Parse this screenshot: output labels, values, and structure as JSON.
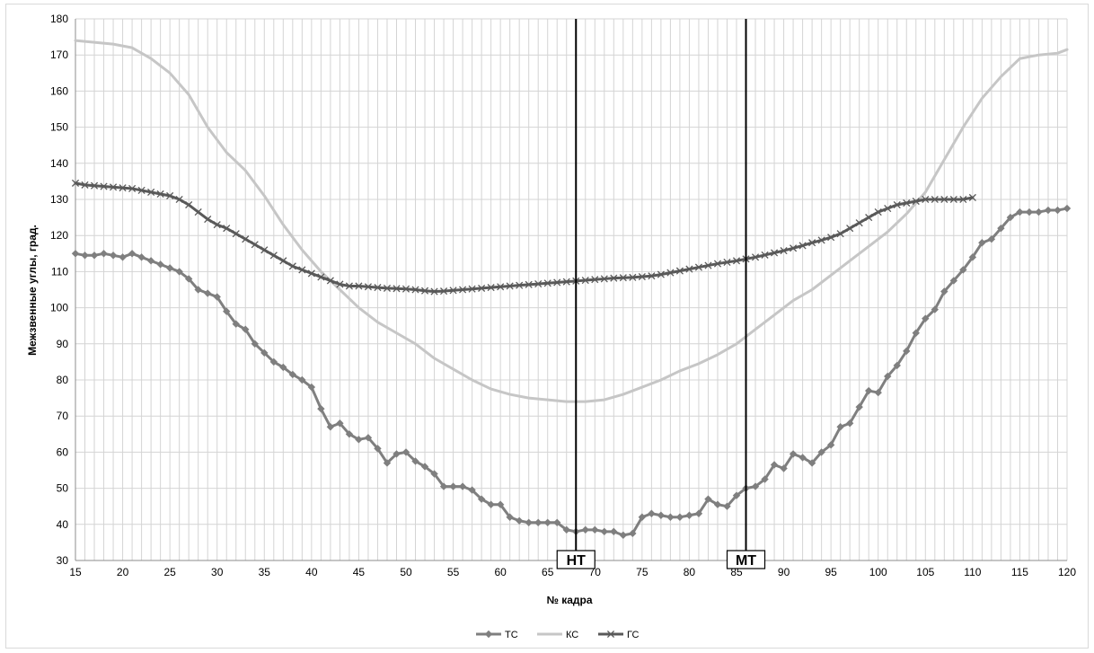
{
  "chart_data": {
    "type": "line",
    "title": "",
    "xlabel": "№ кадра",
    "ylabel": "Межзвенные углы, град.",
    "xlim": [
      15,
      120
    ],
    "ylim": [
      30,
      180
    ],
    "x_ticks": [
      15,
      20,
      25,
      30,
      35,
      40,
      45,
      50,
      55,
      60,
      65,
      70,
      75,
      80,
      85,
      90,
      95,
      100,
      105,
      110,
      115,
      120
    ],
    "y_ticks": [
      30,
      40,
      50,
      60,
      70,
      80,
      90,
      100,
      110,
      120,
      130,
      140,
      150,
      160,
      170,
      180
    ],
    "grid": true,
    "legend_position": "bottom",
    "vertical_markers": [
      {
        "x": 68,
        "label": "НТ"
      },
      {
        "x": 86,
        "label": "МТ"
      }
    ],
    "series": [
      {
        "name": "ТС",
        "color": "#7f7f7f",
        "marker": "diamond",
        "x_start": 15,
        "values": [
          115,
          114.5,
          114.5,
          115,
          114.5,
          114,
          115,
          114,
          113,
          112,
          111,
          110,
          108,
          105,
          104,
          103,
          99,
          95.5,
          94,
          90,
          87.5,
          85,
          83.5,
          81.5,
          80,
          78,
          72,
          67,
          68,
          65,
          63.5,
          64,
          61,
          57,
          59.5,
          60,
          57.5,
          56,
          54,
          50.5,
          50.5,
          50.5,
          49.5,
          47,
          45.5,
          45.5,
          42,
          41,
          40.5,
          40.5,
          40.5,
          40.5,
          38.5,
          38,
          38.5,
          38.5,
          38,
          38,
          37,
          37.5,
          42,
          43,
          42.5,
          42,
          42,
          42.5,
          43,
          47,
          45.5,
          45,
          48,
          50,
          50.5,
          52.5,
          56.5,
          55.5,
          59.5,
          58.5,
          57,
          60,
          62,
          67,
          68,
          72.5,
          77,
          76.5,
          81,
          84,
          88,
          93,
          97,
          99.5,
          104.5,
          107.5,
          110.5,
          114,
          118,
          119,
          122,
          125,
          126.5,
          126.5,
          126.5,
          127,
          127,
          127.5
        ]
      },
      {
        "name": "КС",
        "color": "#c6c6c6",
        "marker": "none",
        "points": [
          [
            15,
            174
          ],
          [
            17,
            173.5
          ],
          [
            19,
            173
          ],
          [
            21,
            172
          ],
          [
            23,
            169
          ],
          [
            25,
            165
          ],
          [
            27,
            159
          ],
          [
            29,
            150
          ],
          [
            31,
            143
          ],
          [
            33,
            138
          ],
          [
            35,
            131
          ],
          [
            37,
            123
          ],
          [
            39,
            116
          ],
          [
            41,
            110
          ],
          [
            43,
            105
          ],
          [
            45,
            100
          ],
          [
            47,
            96
          ],
          [
            49,
            93
          ],
          [
            51,
            90
          ],
          [
            53,
            86
          ],
          [
            55,
            83
          ],
          [
            57,
            80
          ],
          [
            59,
            77.5
          ],
          [
            61,
            76
          ],
          [
            63,
            75
          ],
          [
            65,
            74.5
          ],
          [
            67,
            74
          ],
          [
            69,
            74
          ],
          [
            71,
            74.5
          ],
          [
            73,
            76
          ],
          [
            75,
            78
          ],
          [
            77,
            80
          ],
          [
            79,
            82.5
          ],
          [
            81,
            84.5
          ],
          [
            83,
            87
          ],
          [
            85,
            90
          ],
          [
            87,
            94
          ],
          [
            89,
            98
          ],
          [
            91,
            102
          ],
          [
            93,
            105
          ],
          [
            95,
            109
          ],
          [
            97,
            113
          ],
          [
            99,
            117
          ],
          [
            101,
            121
          ],
          [
            103,
            126
          ],
          [
            105,
            132
          ],
          [
            107,
            141
          ],
          [
            109,
            150
          ],
          [
            111,
            158
          ],
          [
            113,
            164
          ],
          [
            115,
            169
          ],
          [
            117,
            170
          ],
          [
            119,
            170.5
          ],
          [
            120,
            171.5
          ]
        ]
      },
      {
        "name": "ГС",
        "color": "#595959",
        "marker": "x",
        "x_start": 15,
        "values": [
          134.5,
          134,
          133.8,
          133.6,
          133.4,
          133.2,
          133,
          132.5,
          132,
          131.5,
          131,
          130,
          128.5,
          126.5,
          124.5,
          123,
          122,
          120.5,
          119,
          117.5,
          116,
          114.5,
          113,
          111.5,
          110.5,
          109.5,
          108.5,
          107.5,
          106.5,
          106,
          106,
          105.8,
          105.6,
          105.4,
          105.3,
          105.2,
          105,
          104.7,
          104.5,
          104.6,
          104.8,
          105,
          105.2,
          105.4,
          105.6,
          105.8,
          106,
          106.2,
          106.4,
          106.6,
          106.8,
          107,
          107.2,
          107.4,
          107.6,
          107.8,
          108,
          108.2,
          108.3,
          108.4,
          108.6,
          108.8,
          109.2,
          109.7,
          110.2,
          110.7,
          111.2,
          111.7,
          112.2,
          112.6,
          113,
          113.5,
          114,
          114.6,
          115.2,
          115.8,
          116.5,
          117.2,
          118,
          118.7,
          119.5,
          120.5,
          122,
          123.5,
          125,
          126.5,
          127.5,
          128.5,
          129,
          129.5,
          130,
          130,
          130,
          130,
          130,
          130.5
        ]
      }
    ]
  }
}
